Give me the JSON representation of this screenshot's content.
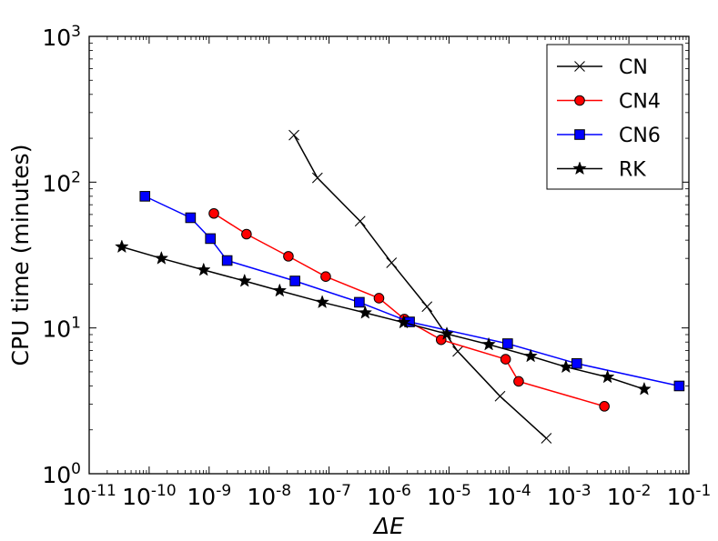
{
  "chart_data": {
    "type": "line",
    "xscale": "log",
    "yscale": "log",
    "xlabel": "ΔE",
    "ylabel": "CPU time (minutes)",
    "xlim": [
      1e-11,
      0.1
    ],
    "ylim": [
      1,
      1000
    ],
    "legend_position": "top-right",
    "x_ticks": [
      {
        "value": 1e-11,
        "base": "10",
        "exp": "-11"
      },
      {
        "value": 1e-10,
        "base": "10",
        "exp": "-10"
      },
      {
        "value": 1e-09,
        "base": "10",
        "exp": "-9"
      },
      {
        "value": 1e-08,
        "base": "10",
        "exp": "-8"
      },
      {
        "value": 1e-07,
        "base": "10",
        "exp": "-7"
      },
      {
        "value": 1e-06,
        "base": "10",
        "exp": "-6"
      },
      {
        "value": 1e-05,
        "base": "10",
        "exp": "-5"
      },
      {
        "value": 0.0001,
        "base": "10",
        "exp": "-4"
      },
      {
        "value": 0.001,
        "base": "10",
        "exp": "-3"
      },
      {
        "value": 0.01,
        "base": "10",
        "exp": "-2"
      },
      {
        "value": 0.1,
        "base": "10",
        "exp": "-1"
      }
    ],
    "y_ticks": [
      {
        "value": 1,
        "base": "10",
        "exp": "0"
      },
      {
        "value": 10,
        "base": "10",
        "exp": "1"
      },
      {
        "value": 100,
        "base": "10",
        "exp": "2"
      },
      {
        "value": 1000,
        "base": "10",
        "exp": "3"
      }
    ],
    "series": [
      {
        "name": "CN",
        "color": "#000000",
        "marker": "x",
        "x": [
          2.6e-08,
          6.4e-08,
          3.3e-07,
          1.1e-06,
          4.3e-06,
          1.4e-05,
          7.1e-05,
          0.00042
        ],
        "y": [
          210,
          107,
          54,
          28,
          14,
          6.9,
          3.4,
          1.75
        ]
      },
      {
        "name": "CN4",
        "color": "#ff0000",
        "marker": "circle",
        "x": [
          1.2e-09,
          4.2e-09,
          2.1e-08,
          8.8e-08,
          6.8e-07,
          1.8e-06,
          7.4e-06,
          8.8e-05,
          0.000145,
          0.0039
        ],
        "y": [
          61,
          44,
          31,
          22.5,
          16,
          11.5,
          8.3,
          6.1,
          4.3,
          2.9
        ]
      },
      {
        "name": "CN6",
        "color": "#0000ff",
        "marker": "square",
        "x": [
          8.5e-11,
          4.9e-10,
          1.05e-09,
          2e-09,
          2.7e-08,
          3.2e-07,
          2.2e-06,
          9.5e-05,
          0.00135,
          0.069
        ],
        "y": [
          80,
          57,
          41,
          29,
          21,
          15,
          11,
          7.8,
          5.7,
          4.0
        ]
      },
      {
        "name": "RK",
        "color": "#000000",
        "marker": "star",
        "x": [
          3.5e-11,
          1.6e-10,
          8.1e-10,
          3.9e-09,
          1.5e-08,
          7.7e-08,
          4e-07,
          1.75e-06,
          9.2e-06,
          4.6e-05,
          0.00023,
          0.00089,
          0.0044,
          0.018
        ],
        "y": [
          36,
          30,
          25,
          21,
          18,
          15,
          12.7,
          10.9,
          9.1,
          7.7,
          6.4,
          5.4,
          4.6,
          3.8
        ]
      }
    ]
  }
}
